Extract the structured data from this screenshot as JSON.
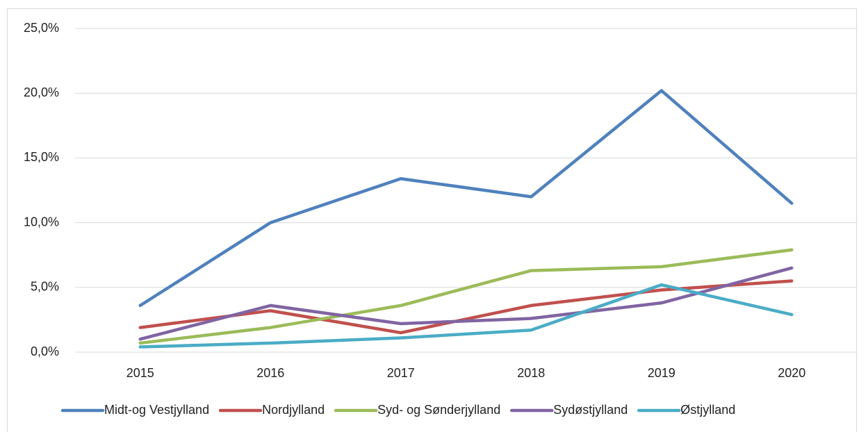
{
  "chart_data": {
    "type": "line",
    "categories": [
      "2015",
      "2016",
      "2017",
      "2018",
      "2019",
      "2020"
    ],
    "series": [
      {
        "name": "Midt-og Vestjylland",
        "color": "#4f81bd",
        "values": [
          3.6,
          10.0,
          13.4,
          12.0,
          20.2,
          11.5
        ]
      },
      {
        "name": "Nordjylland",
        "color": "#c0504d",
        "values": [
          1.9,
          3.2,
          1.5,
          3.6,
          4.8,
          5.5
        ]
      },
      {
        "name": "Syd- og Sønderjylland",
        "color": "#9bbb59",
        "values": [
          0.7,
          1.9,
          3.6,
          6.3,
          6.6,
          7.9
        ]
      },
      {
        "name": "Sydøstjylland",
        "color": "#8064a2",
        "values": [
          1.0,
          3.6,
          2.2,
          2.6,
          3.8,
          6.5
        ]
      },
      {
        "name": "Østjylland",
        "color": "#4bacc6",
        "values": [
          0.4,
          0.7,
          1.1,
          1.7,
          5.2,
          2.9
        ]
      }
    ],
    "ylim": [
      0,
      25
    ],
    "yticks": [
      {
        "value": 0,
        "label": "0,0%"
      },
      {
        "value": 5,
        "label": "5,0%"
      },
      {
        "value": 10,
        "label": "10,0%"
      },
      {
        "value": 15,
        "label": "15,0%"
      },
      {
        "value": 20,
        "label": "20,0%"
      },
      {
        "value": 25,
        "label": "25,0%"
      }
    ],
    "grid": true,
    "legend": "bottom"
  }
}
